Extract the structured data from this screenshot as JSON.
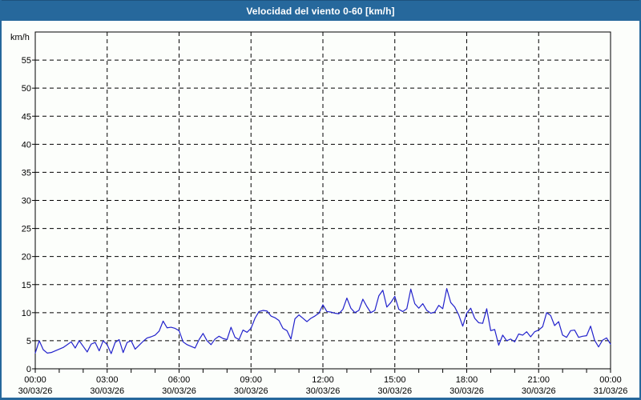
{
  "window": {
    "title": "Velocidad del viento 0-60 [km/h]"
  },
  "colors": {
    "titlebar_bg": "#26689c",
    "titlebar_text": "#ffffff",
    "window_border": "#26689c",
    "content_bg": "#fcfefb",
    "grid": "#000000",
    "axis": "#000000",
    "line": "#2222cc",
    "label_text": "#000000"
  },
  "chart_data": {
    "type": "line",
    "title": "Velocidad del viento 0-60 [km/h]",
    "ylabel": "km/h",
    "ylim": [
      0,
      60
    ],
    "ytick_step": 5,
    "ytick_labels": [
      0,
      5,
      10,
      15,
      20,
      25,
      30,
      35,
      40,
      45,
      50,
      55
    ],
    "x_range_hours": [
      0,
      24
    ],
    "x_major_step_hours": 3,
    "x_minor_step_hours": 1,
    "grid": "dashed",
    "legend": "none",
    "xticks": [
      {
        "time": "00:00",
        "date": "30/03/26"
      },
      {
        "time": "03:00",
        "date": "30/03/26"
      },
      {
        "time": "06:00",
        "date": "30/03/26"
      },
      {
        "time": "09:00",
        "date": "30/03/26"
      },
      {
        "time": "12:00",
        "date": "30/03/26"
      },
      {
        "time": "15:00",
        "date": "30/03/26"
      },
      {
        "time": "18:00",
        "date": "30/03/26"
      },
      {
        "time": "21:00",
        "date": "30/03/26"
      },
      {
        "time": "00:00",
        "date": "31/03/26"
      }
    ],
    "series": [
      {
        "name": "wind-speed",
        "unit": "km/h",
        "x_start_min": 0,
        "x_step_min": 10,
        "values": [
          2.8,
          5.0,
          3.4,
          2.8,
          2.9,
          3.2,
          3.5,
          3.8,
          4.3,
          4.8,
          3.7,
          5.0,
          4.0,
          3.0,
          4.4,
          4.7,
          3.2,
          5.0,
          4.3,
          2.7,
          4.7,
          5.2,
          2.9,
          4.7,
          5.0,
          3.5,
          4.2,
          4.9,
          5.5,
          5.7,
          6.0,
          6.7,
          8.5,
          7.3,
          7.4,
          7.2,
          6.8,
          4.8,
          4.3,
          4.0,
          3.7,
          5.2,
          6.3,
          5.0,
          4.3,
          5.3,
          5.8,
          5.4,
          5.2,
          7.4,
          5.6,
          5.2,
          6.9,
          6.5,
          7.2,
          9.0,
          10.2,
          10.4,
          10.3,
          9.4,
          9.1,
          8.6,
          7.2,
          6.8,
          5.3,
          8.9,
          9.6,
          9.0,
          8.4,
          9.0,
          9.4,
          9.9,
          11.4,
          10.2,
          10.1,
          9.9,
          9.8,
          10.6,
          12.6,
          10.8,
          10.0,
          10.4,
          12.4,
          11.1,
          10.0,
          10.4,
          13.0,
          14.0,
          11.0,
          11.8,
          12.9,
          10.6,
          10.2,
          10.7,
          14.2,
          11.6,
          10.8,
          11.6,
          10.4,
          9.9,
          10.1,
          11.3,
          10.7,
          14.3,
          11.8,
          11.0,
          9.6,
          7.6,
          9.9,
          10.8,
          9.0,
          8.2,
          8.1,
          10.7,
          6.8,
          7.0,
          4.2,
          6.0,
          5.0,
          5.3,
          4.8,
          6.2,
          6.0,
          6.6,
          5.7,
          6.6,
          6.9,
          7.5,
          10.0,
          9.5,
          7.7,
          8.4,
          6.0,
          5.6,
          6.8,
          6.9,
          5.6,
          5.8,
          5.9,
          7.6,
          5.1,
          3.9,
          5.1,
          5.5,
          4.4
        ]
      }
    ]
  }
}
